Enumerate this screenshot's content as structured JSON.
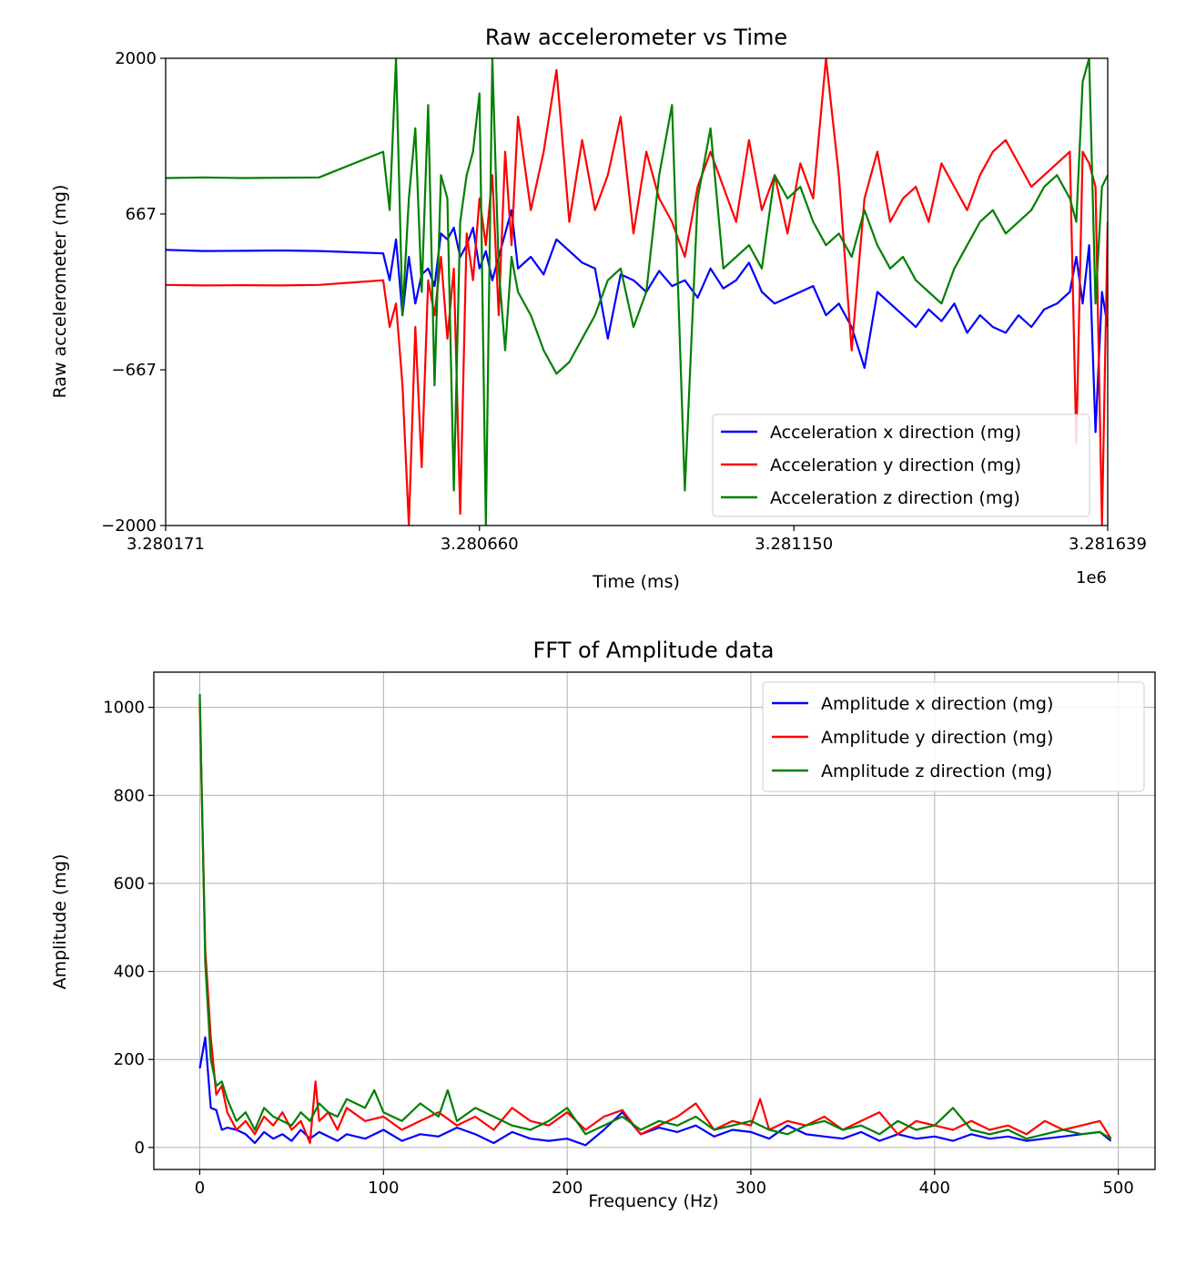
{
  "chart_data": [
    {
      "type": "line",
      "title": "Raw accelerometer vs Time",
      "xlabel": "Time (ms)",
      "ylabel": "Raw accelerometer (mg)",
      "x_offset_label": "1e6",
      "xlim": [
        3.280171,
        3.281639
      ],
      "ylim": [
        -2000,
        2000
      ],
      "xticks": [
        3.280171,
        3.28066,
        3.28115,
        3.281639
      ],
      "xtick_labels": [
        "3.280171",
        "3.280660",
        "3.281150",
        "3.281639"
      ],
      "yticks": [
        2000,
        667,
        -667,
        -2000
      ],
      "ytick_labels": [
        "2000",
        "667",
        "−667",
        "−2000"
      ],
      "grid": false,
      "legend_position": "lower-right",
      "series": [
        {
          "name": "Acceleration x direction (mg)",
          "color": "#0000ff",
          "x": [
            3.280171,
            3.28023,
            3.28029,
            3.28035,
            3.28041,
            3.28051,
            3.28052,
            3.28053,
            3.28054,
            3.28055,
            3.28056,
            3.28057,
            3.28058,
            3.28059,
            3.2806,
            3.28061,
            3.28062,
            3.28063,
            3.28064,
            3.28065,
            3.28066,
            3.28067,
            3.28068,
            3.28069,
            3.2807,
            3.28071,
            3.28072,
            3.28074,
            3.28076,
            3.28078,
            3.2808,
            3.28082,
            3.28084,
            3.28086,
            3.28088,
            3.2809,
            3.28092,
            3.28094,
            3.28096,
            3.28098,
            3.281,
            3.28102,
            3.28104,
            3.28106,
            3.28108,
            3.2811,
            3.28112,
            3.28114,
            3.28116,
            3.28118,
            3.2812,
            3.28122,
            3.28124,
            3.28126,
            3.28128,
            3.2813,
            3.28132,
            3.28134,
            3.28136,
            3.28138,
            3.2814,
            3.28142,
            3.28144,
            3.28146,
            3.28148,
            3.2815,
            3.28152,
            3.28154,
            3.28156,
            3.28158,
            3.28159,
            3.2816,
            3.28161,
            3.28162,
            3.28163,
            3.281639
          ],
          "y": [
            360,
            350,
            352,
            355,
            350,
            330,
            100,
            450,
            -200,
            300,
            -100,
            150,
            200,
            50,
            500,
            450,
            550,
            300,
            400,
            550,
            200,
            350,
            100,
            300,
            500,
            700,
            200,
            300,
            150,
            450,
            350,
            250,
            200,
            -400,
            150,
            100,
            0,
            180,
            50,
            100,
            -50,
            200,
            30,
            100,
            250,
            0,
            -100,
            -50,
            0,
            50,
            -200,
            -100,
            -300,
            -650,
            0,
            -100,
            -200,
            -300,
            -150,
            -250,
            -100,
            -350,
            -200,
            -300,
            -350,
            -200,
            -300,
            -150,
            -100,
            0,
            300,
            -100,
            400,
            -1200,
            0,
            -300
          ]
        },
        {
          "name": "Acceleration y direction (mg)",
          "color": "#ff0000",
          "x": [
            3.280171,
            3.28023,
            3.28029,
            3.28035,
            3.28041,
            3.28051,
            3.28052,
            3.28053,
            3.28054,
            3.28055,
            3.28056,
            3.28057,
            3.28058,
            3.28059,
            3.2806,
            3.28061,
            3.28062,
            3.28063,
            3.28064,
            3.28065,
            3.28066,
            3.28067,
            3.28068,
            3.28069,
            3.2807,
            3.28071,
            3.28072,
            3.28074,
            3.28076,
            3.28078,
            3.2808,
            3.28082,
            3.28084,
            3.28086,
            3.28088,
            3.2809,
            3.28092,
            3.28094,
            3.28096,
            3.28098,
            3.281,
            3.28102,
            3.28104,
            3.28106,
            3.28108,
            3.2811,
            3.28112,
            3.28114,
            3.28116,
            3.28118,
            3.2812,
            3.28122,
            3.28124,
            3.28126,
            3.28128,
            3.2813,
            3.28132,
            3.28134,
            3.28136,
            3.28138,
            3.2814,
            3.28142,
            3.28144,
            3.28146,
            3.28148,
            3.2815,
            3.28152,
            3.28154,
            3.28156,
            3.28158,
            3.28159,
            3.2816,
            3.28161,
            3.28162,
            3.28163,
            3.281639
          ],
          "y": [
            60,
            55,
            58,
            55,
            60,
            100,
            -300,
            -100,
            -800,
            -2000,
            -300,
            -1500,
            100,
            -200,
            300,
            -400,
            200,
            -1900,
            500,
            100,
            800,
            400,
            1000,
            -200,
            1200,
            400,
            1500,
            700,
            1200,
            1900,
            600,
            1300,
            700,
            1000,
            1500,
            500,
            1200,
            800,
            600,
            300,
            900,
            1200,
            900,
            600,
            1300,
            700,
            1000,
            500,
            1100,
            800,
            2000,
            1000,
            -500,
            800,
            1200,
            600,
            800,
            900,
            600,
            1100,
            900,
            700,
            1000,
            1200,
            1300,
            1100,
            900,
            1000,
            1100,
            1200,
            -1300,
            1200,
            1100,
            900,
            -2000,
            600
          ]
        },
        {
          "name": "Acceleration z direction (mg)",
          "color": "#008000",
          "x": [
            3.280171,
            3.28023,
            3.28029,
            3.28035,
            3.28041,
            3.28051,
            3.28052,
            3.28053,
            3.28054,
            3.28055,
            3.28056,
            3.28057,
            3.28058,
            3.28059,
            3.2806,
            3.28061,
            3.28062,
            3.28063,
            3.28064,
            3.28065,
            3.28066,
            3.28067,
            3.28068,
            3.28069,
            3.2807,
            3.28071,
            3.28072,
            3.28074,
            3.28076,
            3.28078,
            3.2808,
            3.28082,
            3.28084,
            3.28086,
            3.28088,
            3.2809,
            3.28092,
            3.28094,
            3.28096,
            3.28098,
            3.281,
            3.28102,
            3.28104,
            3.28106,
            3.28108,
            3.2811,
            3.28112,
            3.28114,
            3.28116,
            3.28118,
            3.2812,
            3.28122,
            3.28124,
            3.28126,
            3.28128,
            3.2813,
            3.28132,
            3.28134,
            3.28136,
            3.28138,
            3.2814,
            3.28142,
            3.28144,
            3.28146,
            3.28148,
            3.2815,
            3.28152,
            3.28154,
            3.28156,
            3.28158,
            3.28159,
            3.2816,
            3.28161,
            3.28162,
            3.28163,
            3.281639
          ],
          "y": [
            975,
            980,
            975,
            978,
            980,
            1200,
            700,
            2000,
            -200,
            800,
            1400,
            0,
            1600,
            -800,
            1000,
            800,
            -1700,
            600,
            1000,
            1200,
            1700,
            -2000,
            2000,
            200,
            -500,
            300,
            0,
            -200,
            -500,
            -700,
            -600,
            -400,
            -200,
            100,
            200,
            -300,
            0,
            1000,
            1600,
            -1700,
            800,
            1400,
            200,
            300,
            400,
            200,
            1000,
            800,
            900,
            600,
            400,
            500,
            300,
            700,
            400,
            200,
            300,
            100,
            0,
            -100,
            200,
            400,
            600,
            700,
            500,
            600,
            700,
            900,
            1000,
            800,
            600,
            1800,
            2000,
            -100,
            900,
            1000
          ]
        }
      ]
    },
    {
      "type": "line",
      "title": "FFT of Amplitude data",
      "xlabel": "Frequency (Hz)",
      "ylabel": "Amplitude (mg)",
      "xlim": [
        -25,
        520
      ],
      "ylim": [
        -50,
        1080
      ],
      "xticks": [
        0,
        100,
        200,
        300,
        400,
        500
      ],
      "xtick_labels": [
        "0",
        "100",
        "200",
        "300",
        "400",
        "500"
      ],
      "yticks": [
        0,
        200,
        400,
        600,
        800,
        1000
      ],
      "ytick_labels": [
        "0",
        "200",
        "400",
        "600",
        "800",
        "1000"
      ],
      "grid": true,
      "legend_position": "top-right",
      "series": [
        {
          "name": "Amplitude x direction (mg)",
          "color": "#0000ff",
          "x": [
            0,
            3,
            6,
            9,
            12,
            15,
            20,
            25,
            30,
            35,
            40,
            45,
            50,
            55,
            60,
            65,
            70,
            75,
            80,
            90,
            100,
            110,
            120,
            130,
            140,
            150,
            160,
            170,
            180,
            190,
            200,
            210,
            220,
            230,
            240,
            250,
            260,
            270,
            280,
            290,
            300,
            310,
            320,
            330,
            340,
            350,
            360,
            370,
            380,
            390,
            400,
            410,
            420,
            430,
            440,
            450,
            460,
            470,
            480,
            490,
            496
          ],
          "y": [
            180,
            250,
            90,
            85,
            40,
            45,
            40,
            30,
            10,
            35,
            20,
            30,
            15,
            40,
            20,
            35,
            25,
            15,
            30,
            20,
            40,
            15,
            30,
            25,
            45,
            30,
            10,
            35,
            20,
            15,
            20,
            5,
            40,
            80,
            30,
            45,
            35,
            50,
            25,
            40,
            35,
            20,
            50,
            30,
            25,
            20,
            35,
            15,
            30,
            20,
            25,
            15,
            30,
            20,
            25,
            15,
            20,
            25,
            30,
            35,
            15
          ]
        },
        {
          "name": "Amplitude y direction (mg)",
          "color": "#ff0000",
          "x": [
            0,
            3,
            6,
            9,
            12,
            15,
            20,
            25,
            30,
            35,
            40,
            45,
            50,
            55,
            60,
            63,
            65,
            70,
            75,
            80,
            90,
            100,
            110,
            120,
            130,
            140,
            150,
            160,
            170,
            180,
            190,
            200,
            210,
            220,
            230,
            240,
            250,
            260,
            270,
            280,
            290,
            300,
            305,
            310,
            320,
            330,
            340,
            350,
            360,
            370,
            380,
            390,
            400,
            410,
            420,
            430,
            440,
            450,
            460,
            470,
            480,
            490,
            496
          ],
          "y": [
            1010,
            450,
            250,
            120,
            140,
            80,
            40,
            60,
            30,
            70,
            50,
            80,
            40,
            60,
            10,
            150,
            60,
            80,
            40,
            90,
            60,
            70,
            40,
            60,
            80,
            50,
            70,
            40,
            90,
            60,
            50,
            80,
            40,
            70,
            85,
            30,
            50,
            70,
            100,
            40,
            60,
            50,
            110,
            40,
            60,
            50,
            70,
            40,
            60,
            80,
            30,
            60,
            50,
            40,
            60,
            40,
            50,
            30,
            60,
            40,
            50,
            60,
            20
          ]
        },
        {
          "name": "Amplitude z direction (mg)",
          "color": "#008000",
          "x": [
            0,
            3,
            6,
            9,
            12,
            15,
            20,
            25,
            30,
            35,
            40,
            45,
            50,
            55,
            60,
            65,
            70,
            75,
            80,
            90,
            95,
            100,
            110,
            120,
            130,
            135,
            140,
            150,
            160,
            170,
            180,
            190,
            200,
            210,
            220,
            230,
            240,
            250,
            260,
            270,
            280,
            290,
            300,
            310,
            320,
            330,
            340,
            350,
            360,
            370,
            380,
            390,
            400,
            410,
            420,
            430,
            440,
            450,
            460,
            470,
            480,
            490,
            496
          ],
          "y": [
            1030,
            420,
            200,
            140,
            150,
            110,
            60,
            80,
            40,
            90,
            70,
            60,
            50,
            80,
            60,
            100,
            80,
            70,
            110,
            90,
            130,
            80,
            60,
            100,
            70,
            130,
            60,
            90,
            70,
            50,
            40,
            60,
            90,
            30,
            50,
            70,
            40,
            60,
            50,
            70,
            40,
            50,
            60,
            40,
            30,
            50,
            60,
            40,
            50,
            30,
            60,
            40,
            50,
            90,
            40,
            30,
            40,
            20,
            30,
            40,
            30,
            35,
            20
          ]
        }
      ]
    }
  ]
}
